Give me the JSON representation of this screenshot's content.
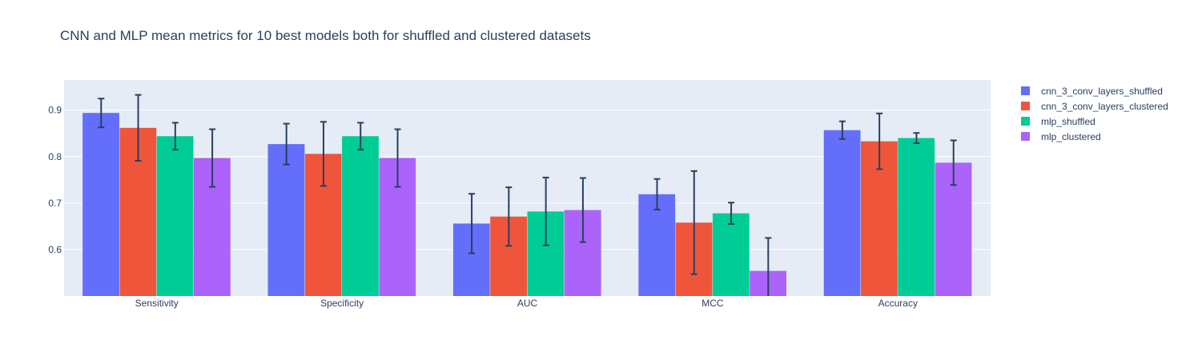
{
  "chart_data": {
    "type": "bar",
    "title": "CNN and MLP mean metrics for 10 best models both for shuffled and clustered datasets",
    "xlabel": "",
    "ylabel": "",
    "categories": [
      "Sensitivity",
      "Specificity",
      "AUC",
      "MCC",
      "Accuracy"
    ],
    "ylim": [
      0.5,
      0.965
    ],
    "yticks": [
      0.6,
      0.7,
      0.8,
      0.9
    ],
    "grid": true,
    "legend_position": "top-right",
    "series": [
      {
        "name": "cnn_3_conv_layers_shuffled",
        "color": "#636efa",
        "values": [
          0.894,
          0.827,
          0.656,
          0.719,
          0.857
        ],
        "errors": [
          0.031,
          0.044,
          0.064,
          0.033,
          0.019
        ]
      },
      {
        "name": "cnn_3_conv_layers_clustered",
        "color": "#ef553b",
        "values": [
          0.862,
          0.806,
          0.671,
          0.658,
          0.833
        ],
        "errors": [
          0.071,
          0.069,
          0.063,
          0.111,
          0.06
        ]
      },
      {
        "name": "mlp_shuffled",
        "color": "#00cc96",
        "values": [
          0.844,
          0.844,
          0.682,
          0.678,
          0.84
        ],
        "errors": [
          0.029,
          0.029,
          0.073,
          0.023,
          0.011
        ]
      },
      {
        "name": "mlp_clustered",
        "color": "#ab63fa",
        "values": [
          0.797,
          0.797,
          0.685,
          0.554,
          0.787
        ],
        "errors": [
          0.062,
          0.062,
          0.069,
          0.071,
          0.048
        ]
      }
    ]
  }
}
